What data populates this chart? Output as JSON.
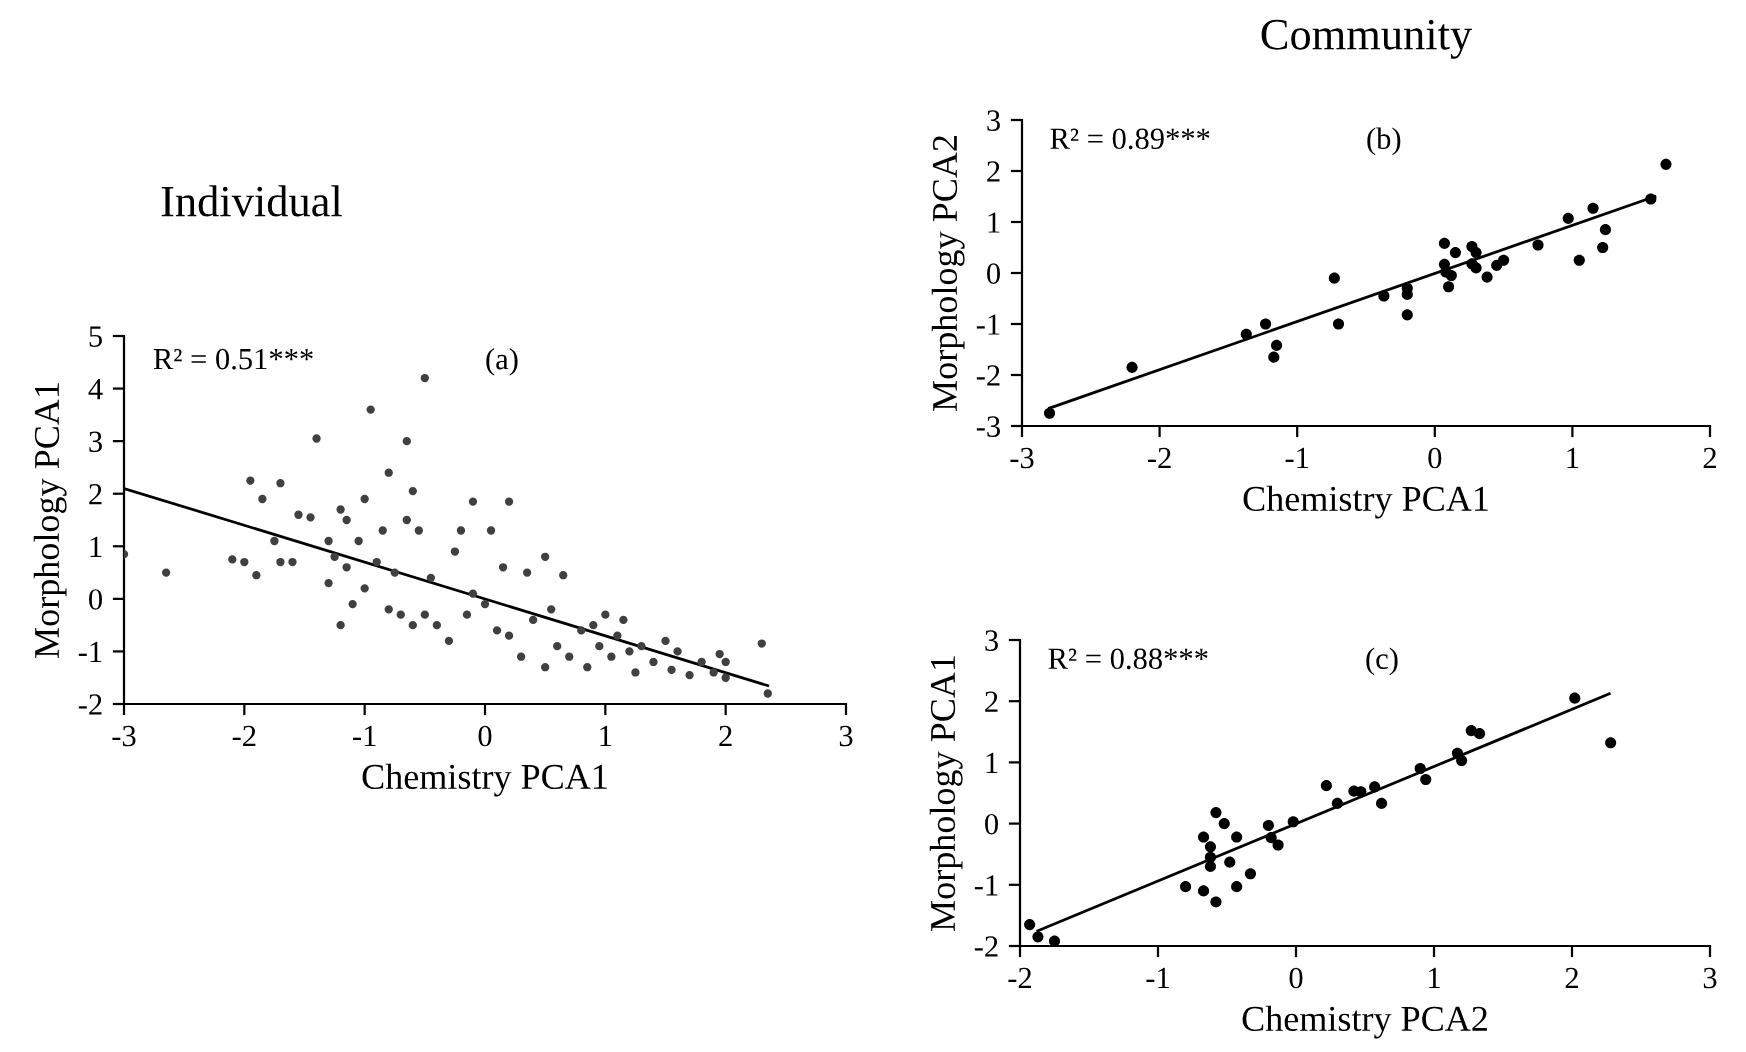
{
  "chart_data": [
    {
      "type": "scatter",
      "title": "Individual",
      "xlabel": "Chemistry PCA1",
      "ylabel": "Morphology PCA1",
      "annotations": [
        "R² = 0.51***",
        "(a)"
      ],
      "xlim": [
        -3,
        3
      ],
      "ylim": [
        -2,
        5
      ],
      "xticks": [
        -3,
        -2,
        -1,
        0,
        1,
        2,
        3
      ],
      "yticks": [
        -2,
        -1,
        0,
        1,
        2,
        3,
        4,
        5
      ],
      "grid": false,
      "legend": false,
      "series": [
        {
          "marker": "circle",
          "color": "#404040",
          "x": [
            -3,
            -2.65,
            -2.1,
            -2.0,
            -1.95,
            -1.9,
            -1.85,
            -1.7,
            -1.75,
            -1.7,
            -1.6,
            -1.55,
            -1.45,
            -1.4,
            -1.3,
            -1.3,
            -1.25,
            -1.2,
            -1.2,
            -1.15,
            -1.15,
            -1.1,
            -1.05,
            -1.0,
            -1.0,
            -0.95,
            -0.9,
            -0.85,
            -0.8,
            -0.8,
            -0.75,
            -0.7,
            -0.65,
            -0.65,
            -0.6,
            -0.6,
            -0.55,
            -0.5,
            -0.5,
            -0.45,
            -0.4,
            -0.3,
            -0.25,
            -0.2,
            -0.15,
            -0.1,
            -0.1,
            0,
            0.05,
            0.1,
            0.15,
            0.2,
            0.2,
            0.3,
            0.35,
            0.4,
            0.5,
            0.5,
            0.55,
            0.6,
            0.65,
            0.7,
            0.8,
            0.85,
            0.9,
            0.95,
            1.0,
            1.05,
            1.1,
            1.15,
            1.2,
            1.25,
            1.3,
            1.4,
            1.5,
            1.55,
            1.6,
            1.7,
            1.8,
            1.9,
            1.95,
            2.0,
            2.0,
            2.3,
            2.35
          ],
          "values": [
            0.85,
            0.5,
            0.75,
            0.7,
            2.25,
            0.45,
            1.9,
            2.2,
            1.1,
            0.7,
            0.7,
            1.6,
            1.55,
            3.05,
            1.1,
            0.3,
            0.8,
            1.7,
            -0.5,
            1.5,
            0.6,
            -0.1,
            1.1,
            1.9,
            0.2,
            3.6,
            0.7,
            1.3,
            2.4,
            -0.2,
            0.5,
            -0.3,
            3.0,
            1.5,
            2.05,
            -0.5,
            1.3,
            4.2,
            -0.3,
            0.4,
            -0.5,
            -0.8,
            0.9,
            1.3,
            -0.3,
            1.85,
            0.1,
            -0.1,
            1.3,
            -0.6,
            0.6,
            1.85,
            -0.7,
            -1.1,
            0.5,
            -0.4,
            0.8,
            -1.3,
            -0.2,
            -0.9,
            0.45,
            -1.1,
            -0.6,
            -1.3,
            -0.5,
            -0.9,
            -0.3,
            -1.1,
            -0.7,
            -0.4,
            -1.0,
            -1.4,
            -0.9,
            -1.2,
            -0.8,
            -1.35,
            -1.0,
            -1.45,
            -1.2,
            -1.4,
            -1.05,
            -1.5,
            -1.2,
            -0.85,
            -1.8
          ]
        },
        {
          "type": "line",
          "color": "#000000",
          "x": [
            -3,
            2.35
          ],
          "values": [
            2.1,
            -1.65
          ]
        }
      ]
    },
    {
      "type": "scatter",
      "title": "Community",
      "xlabel": "Chemistry PCA1",
      "ylabel": "Morphology PCA2",
      "annotations": [
        "R² = 0.89***",
        "(b)"
      ],
      "xlim": [
        -3,
        2
      ],
      "ylim": [
        -3,
        3
      ],
      "xticks": [
        -3,
        -2,
        -1,
        0,
        1,
        2
      ],
      "yticks": [
        -3,
        -2,
        -1,
        0,
        1,
        2,
        3
      ],
      "grid": false,
      "legend": false,
      "series": [
        {
          "marker": "circle",
          "color": "#000000",
          "x": [
            -2.8,
            -2.2,
            -1.37,
            -1.23,
            -1.17,
            -1.15,
            -0.73,
            -0.7,
            -0.37,
            -0.2,
            -0.2,
            -0.2,
            0.07,
            0.07,
            0.08,
            0.1,
            0.12,
            0.15,
            0.27,
            0.27,
            0.3,
            0.3,
            0.38,
            0.45,
            0.5,
            0.75,
            0.97,
            1.05,
            1.15,
            1.22,
            1.24,
            1.57,
            1.68
          ],
          "values": [
            -2.75,
            -1.85,
            -1.2,
            -1.0,
            -1.65,
            -1.42,
            -0.1,
            -1.0,
            -0.45,
            -0.3,
            -0.42,
            -0.82,
            0.58,
            0.17,
            0.02,
            -0.27,
            -0.05,
            0.4,
            0.52,
            0.18,
            0.4,
            0.1,
            -0.08,
            0.15,
            0.25,
            0.55,
            1.07,
            0.25,
            1.27,
            0.5,
            0.85,
            1.45,
            2.13
          ]
        },
        {
          "type": "line",
          "color": "#000000",
          "x": [
            -2.8,
            1.6
          ],
          "values": [
            -2.65,
            1.5
          ]
        }
      ]
    },
    {
      "type": "scatter",
      "xlabel": "Chemistry PCA2",
      "ylabel": "Morphology PCA1",
      "annotations": [
        "R² = 0.88***",
        "(c)"
      ],
      "xlim": [
        -2,
        3
      ],
      "ylim": [
        -2,
        3
      ],
      "xticks": [
        -2,
        -1,
        0,
        1,
        2,
        3
      ],
      "yticks": [
        -2,
        -1,
        0,
        1,
        2,
        3
      ],
      "grid": false,
      "legend": false,
      "series": [
        {
          "marker": "circle",
          "color": "#000000",
          "x": [
            -1.93,
            -1.87,
            -1.75,
            -0.8,
            -0.67,
            -0.67,
            -0.62,
            -0.62,
            -0.62,
            -0.58,
            -0.58,
            -0.52,
            -0.48,
            -0.43,
            -0.43,
            -0.33,
            -0.2,
            -0.18,
            -0.13,
            -0.02,
            0.22,
            0.3,
            0.42,
            0.47,
            0.57,
            0.62,
            0.9,
            0.94,
            1.17,
            1.2,
            1.27,
            1.33,
            2.02,
            2.28
          ],
          "values": [
            -1.65,
            -1.85,
            -1.92,
            -1.03,
            -0.22,
            -1.1,
            -0.38,
            -0.55,
            -0.7,
            0.18,
            -1.28,
            0.0,
            -0.63,
            -0.22,
            -1.03,
            -0.82,
            -0.03,
            -0.23,
            -0.35,
            0.03,
            0.62,
            0.33,
            0.53,
            0.52,
            0.6,
            0.33,
            0.9,
            0.72,
            1.15,
            1.03,
            1.52,
            1.47,
            2.05,
            1.32
          ]
        },
        {
          "type": "line",
          "color": "#000000",
          "x": [
            -1.87,
            2.27
          ],
          "values": [
            -1.75,
            2.12
          ]
        }
      ]
    }
  ]
}
